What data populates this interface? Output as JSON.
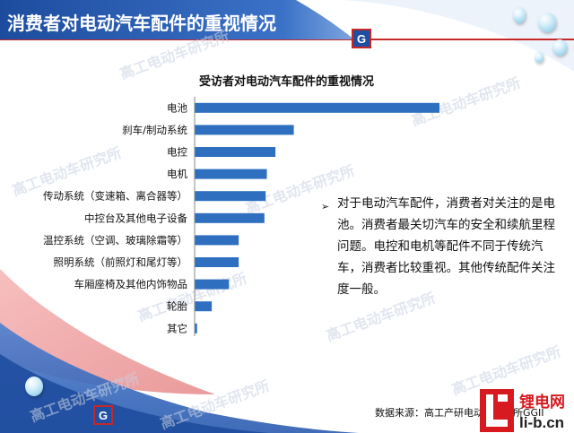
{
  "header": {
    "title": "消费者对电动汽车配件的重视情况",
    "logo_letter": "G"
  },
  "watermark_text": "高工电动车研究所",
  "chart_data": {
    "type": "bar",
    "orientation": "horizontal",
    "title": "受访者对电动汽车配件的重视情况",
    "categories": [
      "电池",
      "刹车/制动系统",
      "电控",
      "电机",
      "传动系统（变速箱、离合器等）",
      "中控台及其他电子设备",
      "温控系统（空调、玻璃除霜等）",
      "照明系统（前照灯和尾灯等）",
      "车厢座椅及其他内饰物品",
      "轮胎",
      "其它"
    ],
    "series": [
      {
        "values": [
          100,
          40.5,
          33,
          29.5,
          29,
          28.5,
          18,
          18,
          14,
          7,
          1
        ]
      }
    ],
    "xlim": [
      0,
      100
    ],
    "grid": false,
    "legend": "none",
    "bar_color": "#2e6fc0"
  },
  "note": {
    "text": "对于电动汽车配件，消费者对关注的是电池。消费者最关切汽车的安全和续航里程问题。电控和电机等配件不同于传统汽车，消费者比较重视。其他传统配件关注度一般。"
  },
  "source": "数据来源：高工产研电动车研究所GGII",
  "badge": {
    "top": "锂电网",
    "bottom": "li-b.cn"
  },
  "colors": {
    "title_band": "#2a5eb0",
    "wave": "#3d6cc0",
    "bar": "#2e6fc0",
    "badge_red": "#d71920"
  }
}
